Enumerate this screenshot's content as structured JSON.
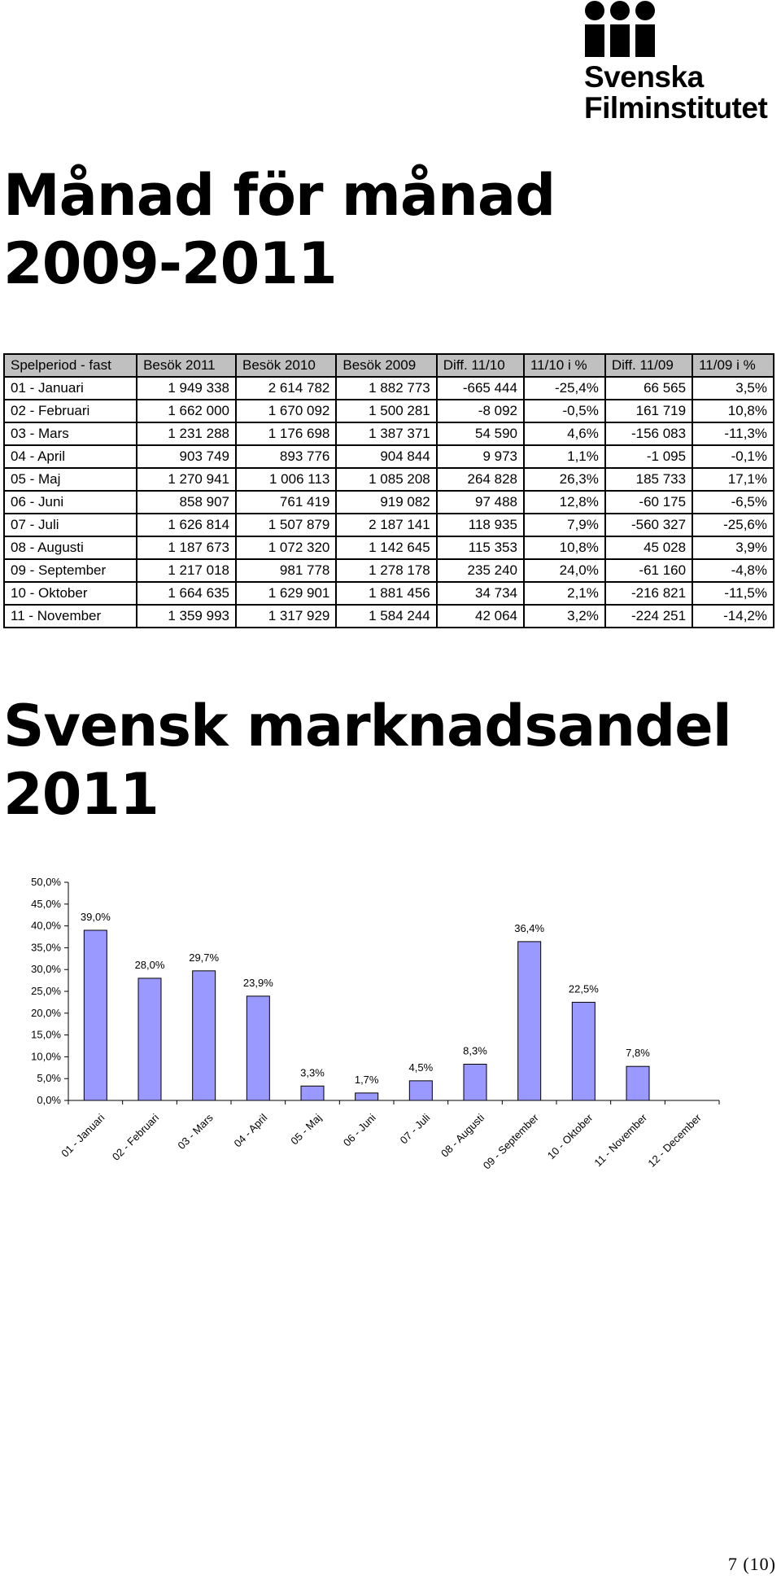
{
  "logo": {
    "line1": "Svenska",
    "line2": "Filminstitutet"
  },
  "title1": {
    "line1": "Månad för månad",
    "line2": "2009-2011"
  },
  "table": {
    "headers": [
      "Spelperiod - fast",
      "Besök 2011",
      "Besök 2010",
      "Besök 2009",
      "Diff. 11/10",
      "11/10 i %",
      "Diff. 11/09",
      "11/09 i %"
    ],
    "rows": [
      [
        "01 - Januari",
        "1 949 338",
        "2 614 782",
        "1 882 773",
        "-665 444",
        "-25,4%",
        "66 565",
        "3,5%"
      ],
      [
        "02 - Februari",
        "1 662 000",
        "1 670 092",
        "1 500 281",
        "-8 092",
        "-0,5%",
        "161 719",
        "10,8%"
      ],
      [
        "03 - Mars",
        "1 231 288",
        "1 176 698",
        "1 387 371",
        "54 590",
        "4,6%",
        "-156 083",
        "-11,3%"
      ],
      [
        "04 - April",
        "903 749",
        "893 776",
        "904 844",
        "9 973",
        "1,1%",
        "-1 095",
        "-0,1%"
      ],
      [
        "05 - Maj",
        "1 270 941",
        "1 006 113",
        "1 085 208",
        "264 828",
        "26,3%",
        "185 733",
        "17,1%"
      ],
      [
        "06 - Juni",
        "858 907",
        "761 419",
        "919 082",
        "97 488",
        "12,8%",
        "-60 175",
        "-6,5%"
      ],
      [
        "07 - Juli",
        "1 626 814",
        "1 507 879",
        "2 187 141",
        "118 935",
        "7,9%",
        "-560 327",
        "-25,6%"
      ],
      [
        "08 - Augusti",
        "1 187 673",
        "1 072 320",
        "1 142 645",
        "115 353",
        "10,8%",
        "45 028",
        "3,9%"
      ],
      [
        "09 - September",
        "1 217 018",
        "981 778",
        "1 278 178",
        "235 240",
        "24,0%",
        "-61 160",
        "-4,8%"
      ],
      [
        "10 - Oktober",
        "1 664 635",
        "1 629 901",
        "1 881 456",
        "34 734",
        "2,1%",
        "-216 821",
        "-11,5%"
      ],
      [
        "11 - November",
        "1 359 993",
        "1 317 929",
        "1 584 244",
        "42 064",
        "3,2%",
        "-224 251",
        "-14,2%"
      ]
    ]
  },
  "title2": {
    "line1": "Svensk marknadsandel",
    "line2": "2011"
  },
  "chart_data": {
    "type": "bar",
    "categories": [
      "01 - Januari",
      "02 - Februari",
      "03 - Mars",
      "04 - April",
      "05 - Maj",
      "06 - Juni",
      "07 - Juli",
      "08 - Augusti",
      "09 - September",
      "10 - Oktober",
      "11 - November",
      "12 - December"
    ],
    "values": [
      39.0,
      28.0,
      29.7,
      23.9,
      3.3,
      1.7,
      4.5,
      8.3,
      36.4,
      22.5,
      7.8,
      null
    ],
    "data_labels": [
      "39,0%",
      "28,0%",
      "29,7%",
      "23,9%",
      "3,3%",
      "1,7%",
      "4,5%",
      "8,3%",
      "36,4%",
      "22,5%",
      "7,8%",
      ""
    ],
    "yticks": [
      "0,0%",
      "5,0%",
      "10,0%",
      "15,0%",
      "20,0%",
      "25,0%",
      "30,0%",
      "35,0%",
      "40,0%",
      "45,0%",
      "50,0%"
    ],
    "ylim": [
      0,
      50
    ],
    "grid": false,
    "bar_color": "#9999ff",
    "bar_stroke": "#000000"
  },
  "page_number": "7 (10)"
}
